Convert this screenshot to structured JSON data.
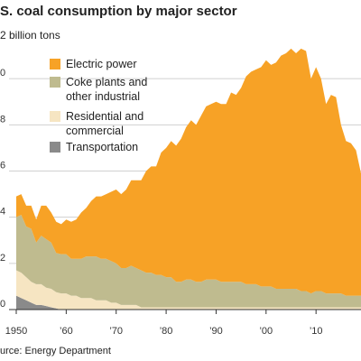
{
  "chart_data": {
    "type": "stacked-area",
    "title": "S. coal consumption by major sector",
    "subtitle": "2 billion tons",
    "source": "urce: Energy Department",
    "x": [
      1950,
      1951,
      1952,
      1953,
      1954,
      1955,
      1956,
      1957,
      1958,
      1959,
      1960,
      1961,
      1962,
      1963,
      1964,
      1965,
      1966,
      1967,
      1968,
      1969,
      1970,
      1971,
      1972,
      1973,
      1974,
      1975,
      1976,
      1977,
      1978,
      1979,
      1980,
      1981,
      1982,
      1983,
      1984,
      1985,
      1986,
      1987,
      1988,
      1989,
      1990,
      1991,
      1992,
      1993,
      1994,
      1995,
      1996,
      1997,
      1998,
      1999,
      2000,
      2001,
      2002,
      2003,
      2004,
      2005,
      2006,
      2007,
      2008,
      2009,
      2010,
      2011,
      2012,
      2013,
      2014,
      2015,
      2016,
      2017,
      2018,
      2019
    ],
    "xlim": [
      1950,
      2019
    ],
    "xticks": [
      {
        "value": 1950,
        "label": "1950"
      },
      {
        "value": 1960,
        "label": "’60"
      },
      {
        "value": 1970,
        "label": "’70"
      },
      {
        "value": 1980,
        "label": "’80"
      },
      {
        "value": 1990,
        "label": "’90"
      },
      {
        "value": 2000,
        "label": "’00"
      },
      {
        "value": 2010,
        "label": "’10"
      }
    ],
    "ylim": [
      0,
      1.2
    ],
    "yticks": [
      0,
      {
        "value": 0.2,
        "label": "2"
      },
      {
        "value": 0.4,
        "label": "4"
      },
      {
        "value": 0.6,
        "label": "6"
      },
      {
        "value": 0.8,
        "label": "8"
      },
      {
        "value": 1.0,
        "label": "0"
      }
    ],
    "grid": true,
    "series": [
      {
        "name": "Transportation",
        "color": "#8a8a8a",
        "values": [
          0.06,
          0.05,
          0.04,
          0.03,
          0.02,
          0.02,
          0.015,
          0.01,
          0.005,
          0,
          0,
          0,
          0,
          0,
          0,
          0,
          0,
          0,
          0,
          0,
          0,
          0,
          0,
          0,
          0,
          0,
          0,
          0,
          0,
          0,
          0,
          0,
          0,
          0,
          0,
          0,
          0,
          0,
          0,
          0,
          0,
          0,
          0,
          0,
          0,
          0,
          0,
          0,
          0,
          0,
          0,
          0,
          0,
          0,
          0,
          0,
          0,
          0,
          0,
          0,
          0,
          0,
          0,
          0,
          0,
          0,
          0,
          0,
          0,
          0
        ]
      },
      {
        "name": "Residential and\ncommercial",
        "color": "#f6e5c2",
        "values": [
          0.11,
          0.11,
          0.1,
          0.09,
          0.09,
          0.09,
          0.08,
          0.08,
          0.07,
          0.07,
          0.07,
          0.06,
          0.06,
          0.05,
          0.05,
          0.05,
          0.04,
          0.04,
          0.04,
          0.03,
          0.03,
          0.02,
          0.02,
          0.02,
          0.02,
          0.01,
          0.01,
          0.01,
          0.01,
          0.01,
          0.01,
          0.01,
          0.01,
          0.01,
          0.01,
          0.01,
          0.01,
          0.01,
          0.01,
          0.01,
          0.01,
          0.01,
          0.01,
          0.01,
          0.01,
          0.01,
          0.01,
          0.01,
          0.01,
          0.01,
          0.01,
          0.01,
          0.01,
          0.01,
          0.01,
          0.01,
          0.01,
          0.01,
          0.01,
          0.01,
          0.01,
          0.01,
          0.01,
          0.01,
          0.01,
          0.01,
          0.01,
          0.01,
          0.01,
          0.01
        ]
      },
      {
        "name": "Coke plants and\nother industrial",
        "color": "#bfbb8f",
        "values": [
          0.23,
          0.25,
          0.22,
          0.23,
          0.18,
          0.21,
          0.21,
          0.2,
          0.17,
          0.17,
          0.17,
          0.16,
          0.16,
          0.17,
          0.18,
          0.18,
          0.19,
          0.18,
          0.18,
          0.18,
          0.17,
          0.16,
          0.16,
          0.17,
          0.16,
          0.16,
          0.15,
          0.15,
          0.14,
          0.14,
          0.13,
          0.13,
          0.11,
          0.11,
          0.12,
          0.12,
          0.11,
          0.11,
          0.12,
          0.12,
          0.12,
          0.11,
          0.11,
          0.11,
          0.11,
          0.11,
          0.1,
          0.1,
          0.1,
          0.09,
          0.09,
          0.09,
          0.08,
          0.08,
          0.08,
          0.08,
          0.08,
          0.07,
          0.07,
          0.06,
          0.07,
          0.07,
          0.06,
          0.06,
          0.06,
          0.06,
          0.05,
          0.05,
          0.05,
          0.05
        ]
      },
      {
        "name": "Electric power",
        "color": "#f7a226",
        "values": [
          0.09,
          0.09,
          0.09,
          0.1,
          0.1,
          0.13,
          0.145,
          0.13,
          0.135,
          0.13,
          0.15,
          0.16,
          0.17,
          0.2,
          0.21,
          0.24,
          0.26,
          0.27,
          0.28,
          0.3,
          0.32,
          0.32,
          0.34,
          0.37,
          0.38,
          0.39,
          0.44,
          0.46,
          0.47,
          0.53,
          0.56,
          0.59,
          0.59,
          0.62,
          0.66,
          0.69,
          0.68,
          0.72,
          0.75,
          0.76,
          0.77,
          0.77,
          0.77,
          0.82,
          0.81,
          0.84,
          0.9,
          0.92,
          0.93,
          0.95,
          0.98,
          0.96,
          0.98,
          1.01,
          1.02,
          1.04,
          1.02,
          1.05,
          1.04,
          0.93,
          0.97,
          0.92,
          0.82,
          0.86,
          0.85,
          0.73,
          0.67,
          0.66,
          0.63,
          0.53
        ]
      }
    ]
  }
}
